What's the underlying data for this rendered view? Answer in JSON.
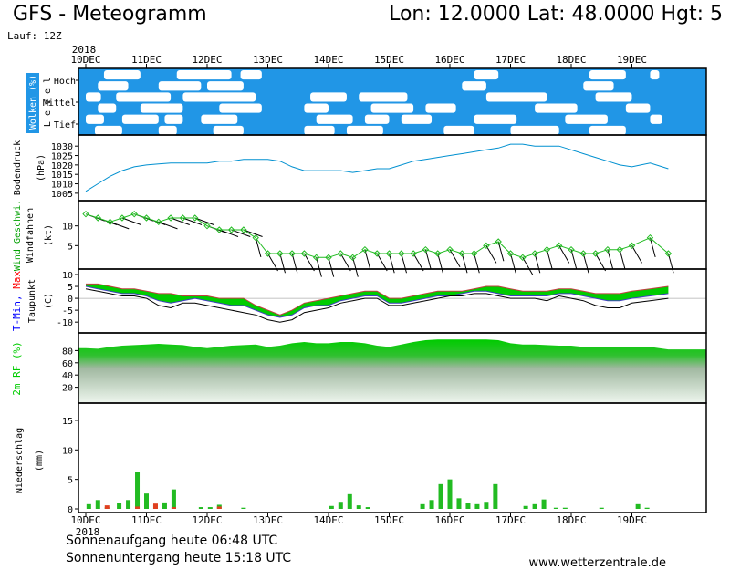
{
  "header": {
    "title_left": "GFS - Meteogramm",
    "title_right": "Lon: 12.0000  Lat: 48.0000  Hgt: 5",
    "run": "Lauf: 12Z"
  },
  "footer": {
    "sunrise": "Sonnenaufgang heute 06:48 UTC",
    "sunset": "Sonnenuntergang heute 15:18 UTC",
    "site": "www.wetterzentrale.de"
  },
  "colors": {
    "cloud_sky": "#2196e6",
    "cloud": "#ffffff",
    "pressure": "#0090d0",
    "wind_speed": "#22bb22",
    "wind_barb": "#000000",
    "temp_band": "#00cc00",
    "temp_band2": "#00c8a0",
    "dewpoint": "#000000",
    "humidity": "#00cc00",
    "precip_rain": "#22bb22",
    "precip_conv": "#e04020",
    "tmin_label": "#0000ff",
    "tmax_label": "#ff0000",
    "wind_label": "#00a000"
  },
  "chart_data": [
    {
      "type": "heatmap",
      "ylabel": "Wolken (%)",
      "side_label": "L e v e l",
      "levels": [
        "Hoch",
        "Mittel",
        "Tief"
      ],
      "note": "cloud cover by level"
    },
    {
      "type": "line",
      "ylabel": "Bodendruck (hPa)",
      "ylim": [
        1003,
        1033
      ],
      "yticks": [
        1005,
        1010,
        1015,
        1020,
        1025,
        1030
      ],
      "x_days": [
        0,
        0.2,
        0.4,
        0.6,
        0.8,
        1.0,
        1.2,
        1.4,
        1.6,
        1.8,
        2.0,
        2.2,
        2.4,
        2.6,
        2.8,
        3.0,
        3.2,
        3.4,
        3.6,
        3.8,
        4.0,
        4.2,
        4.4,
        4.6,
        4.8,
        5.0,
        5.2,
        5.4,
        5.6,
        5.8,
        6.0,
        6.2,
        6.4,
        6.6,
        6.8,
        7.0,
        7.2,
        7.4,
        7.6,
        7.8,
        8.0,
        8.2,
        8.4,
        8.6,
        8.8,
        9.0,
        9.3,
        9.6
      ],
      "values": [
        1006,
        1010,
        1014,
        1017,
        1019,
        1020,
        1020.5,
        1021,
        1021,
        1021,
        1021,
        1022,
        1022,
        1023,
        1023,
        1023,
        1022,
        1019,
        1017,
        1017,
        1017,
        1017,
        1016,
        1017,
        1018,
        1018,
        1020,
        1022,
        1023,
        1024,
        1025,
        1026,
        1027,
        1028,
        1029,
        1031,
        1031,
        1030,
        1030,
        1030,
        1028,
        1026,
        1024,
        1022,
        1020,
        1019,
        1021,
        1018
      ]
    },
    {
      "type": "line",
      "ylabel": "Wind Geschwi. (kt)",
      "ylabel2": "Windfahnen",
      "ylim": [
        0,
        15
      ],
      "yticks": [
        5,
        10
      ],
      "x_days": [
        0,
        0.2,
        0.4,
        0.6,
        0.8,
        1.0,
        1.2,
        1.4,
        1.6,
        1.8,
        2.0,
        2.2,
        2.4,
        2.6,
        2.8,
        3.0,
        3.2,
        3.4,
        3.6,
        3.8,
        4.0,
        4.2,
        4.4,
        4.6,
        4.8,
        5.0,
        5.2,
        5.4,
        5.6,
        5.8,
        6.0,
        6.2,
        6.4,
        6.6,
        6.8,
        7.0,
        7.2,
        7.4,
        7.6,
        7.8,
        8.0,
        8.2,
        8.4,
        8.6,
        8.8,
        9.0,
        9.3,
        9.6
      ],
      "values": [
        13,
        12,
        11,
        12,
        13,
        12,
        11,
        12,
        12,
        12,
        10,
        9,
        9,
        9,
        7,
        3,
        3,
        3,
        3,
        2,
        2,
        3,
        2,
        4,
        3,
        3,
        3,
        3,
        4,
        3,
        4,
        3,
        3,
        5,
        6,
        3,
        2,
        3,
        4,
        5,
        4,
        3,
        3,
        4,
        4,
        5,
        7,
        3
      ],
      "barb_speeds": [
        8,
        8,
        8,
        10,
        10,
        10,
        10,
        10,
        10,
        10,
        5,
        5,
        5,
        5,
        5,
        5,
        5,
        5,
        5,
        5,
        5,
        5,
        5,
        5,
        5,
        5,
        5,
        5,
        5,
        5,
        5,
        5,
        5,
        5,
        5,
        5,
        5,
        5,
        5,
        5,
        5,
        5,
        5,
        5,
        5,
        5,
        5,
        5
      ]
    },
    {
      "type": "area",
      "ylabel": "Taupunkt (C)",
      "ylabel_tmin": "T-Min,",
      "ylabel_tmax": "Max",
      "ylim": [
        -13,
        10
      ],
      "yticks": [
        -10,
        -5,
        0,
        5,
        10
      ],
      "x_days": [
        0,
        0.2,
        0.4,
        0.6,
        0.8,
        1.0,
        1.2,
        1.4,
        1.6,
        1.8,
        2.0,
        2.2,
        2.4,
        2.6,
        2.8,
        3.0,
        3.2,
        3.4,
        3.6,
        3.8,
        4.0,
        4.2,
        4.4,
        4.6,
        4.8,
        5.0,
        5.2,
        5.4,
        5.6,
        5.8,
        6.0,
        6.2,
        6.4,
        6.6,
        6.8,
        7.0,
        7.2,
        7.4,
        7.6,
        7.8,
        8.0,
        8.2,
        8.4,
        8.6,
        8.8,
        9.0,
        9.3,
        9.6
      ],
      "series": [
        {
          "name": "T-Max",
          "values": [
            6,
            6,
            5,
            4,
            4,
            3,
            2,
            2,
            1,
            1,
            1,
            0,
            0,
            0,
            -3,
            -5,
            -7,
            -5,
            -2,
            -1,
            0,
            1,
            2,
            3,
            3,
            0,
            0,
            1,
            2,
            3,
            3,
            3,
            4,
            5,
            5,
            4,
            3,
            3,
            3,
            4,
            4,
            3,
            2,
            2,
            2,
            3,
            4,
            5
          ]
        },
        {
          "name": "T-Min",
          "values": [
            5,
            4,
            3,
            2,
            2,
            1,
            -1,
            -2,
            -1,
            0,
            -1,
            -2,
            -3,
            -3,
            -5,
            -7,
            -8,
            -7,
            -4,
            -3,
            -3,
            -1,
            0,
            1,
            1,
            -2,
            -2,
            -1,
            0,
            1,
            1,
            2,
            3,
            3,
            2,
            1,
            1,
            1,
            1,
            2,
            2,
            1,
            0,
            -1,
            -1,
            0,
            1,
            2
          ]
        },
        {
          "name": "Taupunkt",
          "values": [
            4,
            3,
            2,
            1,
            1,
            0,
            -3,
            -4,
            -2,
            -2,
            -3,
            -4,
            -5,
            -6,
            -7,
            -9,
            -10,
            -9,
            -6,
            -5,
            -4,
            -2,
            -1,
            0,
            0,
            -3,
            -3,
            -2,
            -1,
            0,
            1,
            1,
            2,
            2,
            1,
            0,
            0,
            0,
            -1,
            1,
            0,
            -1,
            -3,
            -4,
            -4,
            -2,
            -1,
            0
          ]
        }
      ]
    },
    {
      "type": "area",
      "ylabel": "2m RF (%)",
      "ylim": [
        0,
        100
      ],
      "yticks": [
        20,
        40,
        60,
        80
      ],
      "x_days": [
        0,
        0.2,
        0.4,
        0.6,
        0.8,
        1.0,
        1.2,
        1.4,
        1.6,
        1.8,
        2.0,
        2.2,
        2.4,
        2.6,
        2.8,
        3.0,
        3.2,
        3.4,
        3.6,
        3.8,
        4.0,
        4.2,
        4.4,
        4.6,
        4.8,
        5.0,
        5.2,
        5.4,
        5.6,
        5.8,
        6.0,
        6.2,
        6.4,
        6.6,
        6.8,
        7.0,
        7.2,
        7.4,
        7.6,
        7.8,
        8.0,
        8.2,
        8.4,
        8.6,
        8.8,
        9.0,
        9.3,
        9.6
      ],
      "values": [
        84,
        83,
        86,
        88,
        89,
        90,
        91,
        90,
        89,
        86,
        84,
        86,
        88,
        89,
        90,
        86,
        88,
        92,
        94,
        92,
        92,
        94,
        94,
        92,
        88,
        86,
        90,
        94,
        97,
        98,
        98,
        98,
        98,
        98,
        97,
        92,
        90,
        90,
        89,
        88,
        88,
        86,
        86,
        86,
        86,
        86,
        86,
        82
      ]
    },
    {
      "type": "bar",
      "ylabel": "Niederschlag (mm)",
      "ylim": [
        0,
        17
      ],
      "yticks": [
        0,
        5,
        10,
        15
      ],
      "bar_days": [
        0.05,
        0.2,
        0.35,
        0.55,
        0.7,
        0.85,
        1.0,
        1.15,
        1.3,
        1.45,
        1.9,
        2.05,
        2.2,
        2.6,
        4.05,
        4.2,
        4.35,
        4.5,
        4.65,
        5.55,
        5.7,
        5.85,
        6.0,
        6.15,
        6.3,
        6.45,
        6.6,
        6.75,
        7.25,
        7.4,
        7.55,
        7.75,
        7.9,
        8.5,
        9.1,
        9.25
      ],
      "values": [
        0.8,
        1.5,
        0.3,
        1.0,
        1.5,
        6.3,
        2.6,
        0.7,
        1.1,
        3.3,
        0.3,
        0.3,
        0.7,
        0.2,
        0.5,
        1.2,
        2.5,
        0.6,
        0.3,
        0.8,
        1.5,
        4.2,
        5.0,
        1.8,
        1.0,
        0.8,
        1.2,
        4.2,
        0.5,
        0.8,
        1.6,
        0.2,
        0.2,
        0.2,
        0.8,
        0.2
      ],
      "convective_days": [
        0.35,
        0.85,
        1.15,
        1.45,
        2.2
      ],
      "convective_values": [
        0.6,
        0.4,
        0.9,
        0.3,
        0.4
      ]
    }
  ],
  "days": [
    "10DEC",
    "11DEC",
    "12DEC",
    "13DEC",
    "14DEC",
    "15DEC",
    "16DEC",
    "17DEC",
    "18DEC",
    "19DEC"
  ],
  "year": "2018"
}
